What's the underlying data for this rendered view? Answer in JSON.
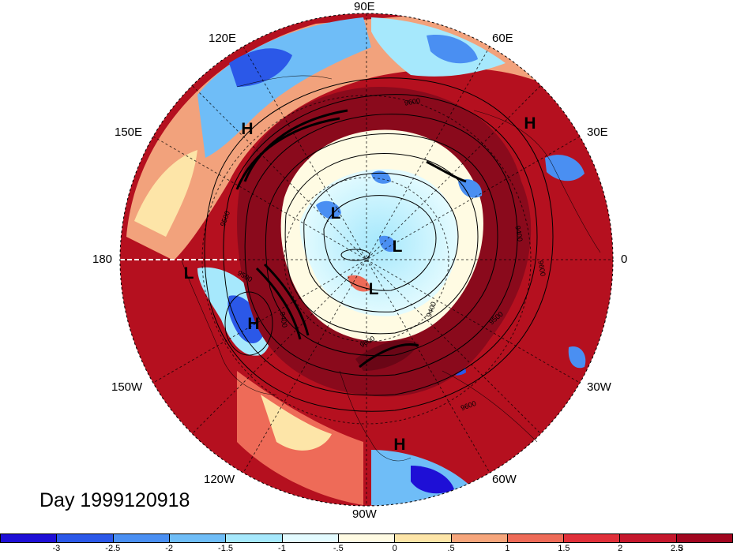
{
  "title": "Day 1999120918",
  "longitude_labels": [
    {
      "text": "90E"
    },
    {
      "text": "60E"
    },
    {
      "text": "120E"
    },
    {
      "text": "30E"
    },
    {
      "text": "150E"
    },
    {
      "text": "180"
    },
    {
      "text": "0"
    },
    {
      "text": "150W"
    },
    {
      "text": "30W"
    },
    {
      "text": "120W"
    },
    {
      "text": "60W"
    },
    {
      "text": "90W"
    }
  ],
  "pressure_centers": [
    {
      "text": "H"
    },
    {
      "text": "H"
    },
    {
      "text": "L"
    },
    {
      "text": "L"
    },
    {
      "text": "L"
    },
    {
      "text": "L"
    },
    {
      "text": "H"
    },
    {
      "text": "H"
    }
  ],
  "contour_labels": [
    "9600",
    "9500",
    "9400",
    "9500",
    "9600",
    "9400",
    "9500",
    "9600",
    "9400",
    "9600"
  ],
  "colorbar": {
    "colors": [
      "#1e0fd6",
      "#2b58e8",
      "#4a8ff2",
      "#6fbdf7",
      "#a6e8fc",
      "#e3fbff",
      "#fffbe3",
      "#fde5a8",
      "#f6a67c",
      "#ee6b58",
      "#e0303a",
      "#c5172c",
      "#a1061f"
    ],
    "ticks": [
      "-3",
      "-2.5",
      "-2",
      "-1.5",
      "-1",
      "-.5",
      "0",
      ".5",
      "1",
      "1.5",
      "2",
      "2.5",
      "3"
    ]
  }
}
